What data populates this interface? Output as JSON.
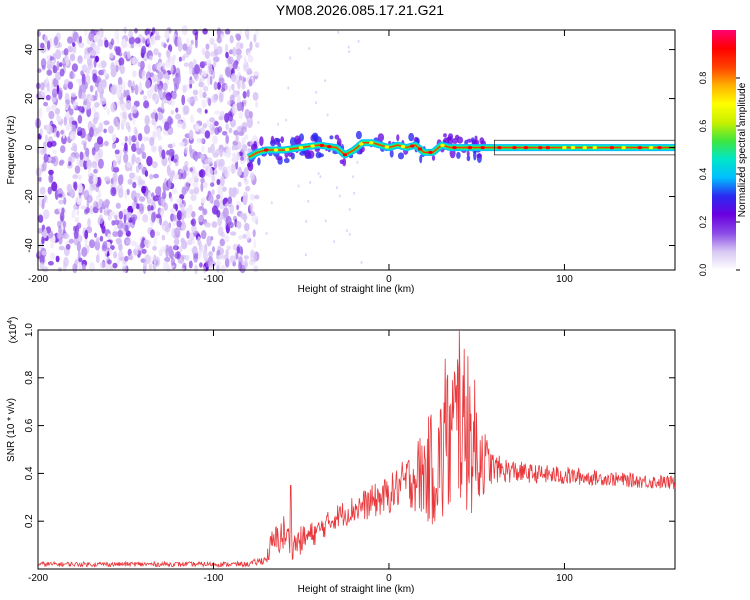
{
  "title": "YM08.2026.085.17.21.G21",
  "chart_data": [
    {
      "type": "heatmap",
      "title": "YM08.2026.085.17.21.G21",
      "xlabel": "Height of straight line (km)",
      "ylabel": "Frequency (Hz)",
      "xlim": [
        -200,
        163
      ],
      "ylim": [
        -50,
        48
      ],
      "x_ticks": [
        -200,
        -100,
        0,
        100
      ],
      "y_ticks": [
        -40,
        -20,
        0,
        20,
        40
      ],
      "noise_region": {
        "x_range": [
          -200,
          -75
        ],
        "description": "random noise speckle"
      },
      "signal_band": {
        "x": [
          -80,
          -75,
          -70,
          -60,
          -50,
          -40,
          -30,
          -25,
          -20,
          -15,
          -10,
          -5,
          0,
          5,
          10,
          15,
          20,
          25,
          30,
          35,
          40,
          50,
          60,
          80,
          100,
          130,
          163
        ],
        "freq_hz": [
          -4,
          -2,
          -1,
          -1,
          0,
          1,
          0,
          -3,
          -1,
          2,
          2,
          1,
          0,
          1,
          0,
          1,
          -2,
          -2,
          1,
          0,
          0,
          0,
          0,
          0,
          0,
          0,
          0
        ]
      },
      "colorbar": {
        "label": "Normalized spectral amplitude",
        "range": [
          0,
          1
        ],
        "ticks": [
          0.0,
          0.2,
          0.4,
          0.6,
          0.8
        ],
        "colors": [
          "#ffffff",
          "#d8c8f4",
          "#8a4ae6",
          "#6a00e0",
          "#2a2af0",
          "#00bfff",
          "#00e6c8",
          "#3ee63e",
          "#c8f000",
          "#ffff00",
          "#ffb000",
          "#ff4000",
          "#ff0000",
          "#ff0070"
        ]
      }
    },
    {
      "type": "line",
      "xlabel": "Height of straight line (km)",
      "ylabel": "SNR (10 * v/v)",
      "y_multiplier": "(x10",
      "y_multiplier_exp": "4",
      "y_multiplier_close": ")",
      "xlim": [
        -200,
        163
      ],
      "ylim": [
        0,
        1.0
      ],
      "x_ticks": [
        -200,
        -100,
        0,
        100
      ],
      "y_ticks": [
        0.2,
        0.4,
        0.6,
        0.8,
        1.0
      ],
      "series": [
        {
          "name": "SNR",
          "color": "#e8383c",
          "x": [
            -200,
            -80,
            -70,
            -67,
            -60,
            -55,
            -50,
            -40,
            -30,
            -20,
            -10,
            0,
            10,
            20,
            30,
            35,
            40,
            45,
            50,
            55,
            60,
            70,
            80,
            100,
            120,
            140,
            163
          ],
          "y": [
            0.02,
            0.02,
            0.04,
            0.1,
            0.15,
            0.1,
            0.12,
            0.16,
            0.22,
            0.25,
            0.28,
            0.31,
            0.37,
            0.4,
            0.45,
            0.55,
            0.62,
            0.55,
            0.5,
            0.45,
            0.42,
            0.41,
            0.4,
            0.39,
            0.38,
            0.37,
            0.36
          ],
          "noise_amplitude": [
            0.01,
            0.01,
            0.02,
            0.06,
            0.08,
            0.06,
            0.06,
            0.05,
            0.05,
            0.06,
            0.07,
            0.08,
            0.1,
            0.2,
            0.3,
            0.35,
            0.38,
            0.32,
            0.28,
            0.12,
            0.06,
            0.05,
            0.04,
            0.04,
            0.03,
            0.03,
            0.03
          ],
          "peaks": [
            {
              "x": -56,
              "y": 0.35
            },
            {
              "x": 40,
              "y": 1.0
            },
            {
              "x": 32,
              "y": 0.88
            },
            {
              "x": 45,
              "y": 0.89
            }
          ]
        }
      ]
    }
  ]
}
